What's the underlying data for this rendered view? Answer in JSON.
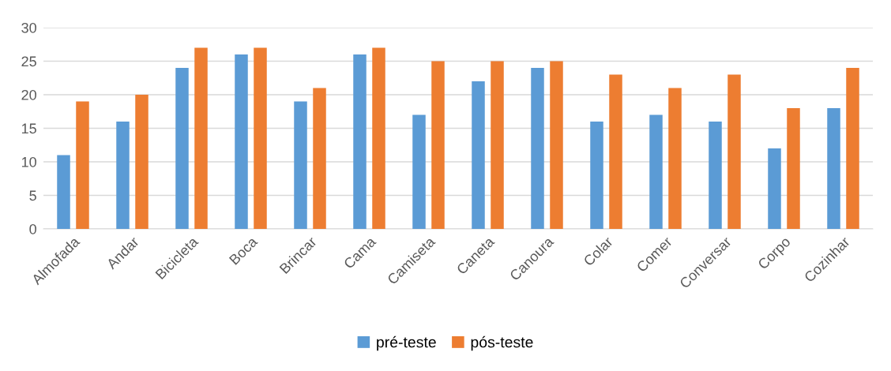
{
  "chart_data": {
    "type": "bar",
    "categories": [
      "Almofada",
      "Andar",
      "Bicicleta",
      "Boca",
      "Brincar",
      "Cama",
      "Camiseta",
      "Caneta",
      "Canoura",
      "Colar",
      "Comer",
      "Conversar",
      "Corpo",
      "Cozinhar"
    ],
    "series": [
      {
        "name": "pré-teste",
        "color": "#5b9bd5",
        "values": [
          11,
          16,
          24,
          26,
          19,
          26,
          17,
          22,
          24,
          16,
          17,
          16,
          12,
          18
        ]
      },
      {
        "name": "pós-teste",
        "color": "#ed7d31",
        "values": [
          19,
          20,
          27,
          27,
          21,
          27,
          25,
          25,
          25,
          23,
          21,
          23,
          18,
          24
        ]
      }
    ],
    "ylim": [
      0,
      30
    ],
    "yticks": [
      0,
      5,
      10,
      15,
      20,
      25,
      30
    ],
    "grid": "y",
    "legend": "bottom"
  }
}
